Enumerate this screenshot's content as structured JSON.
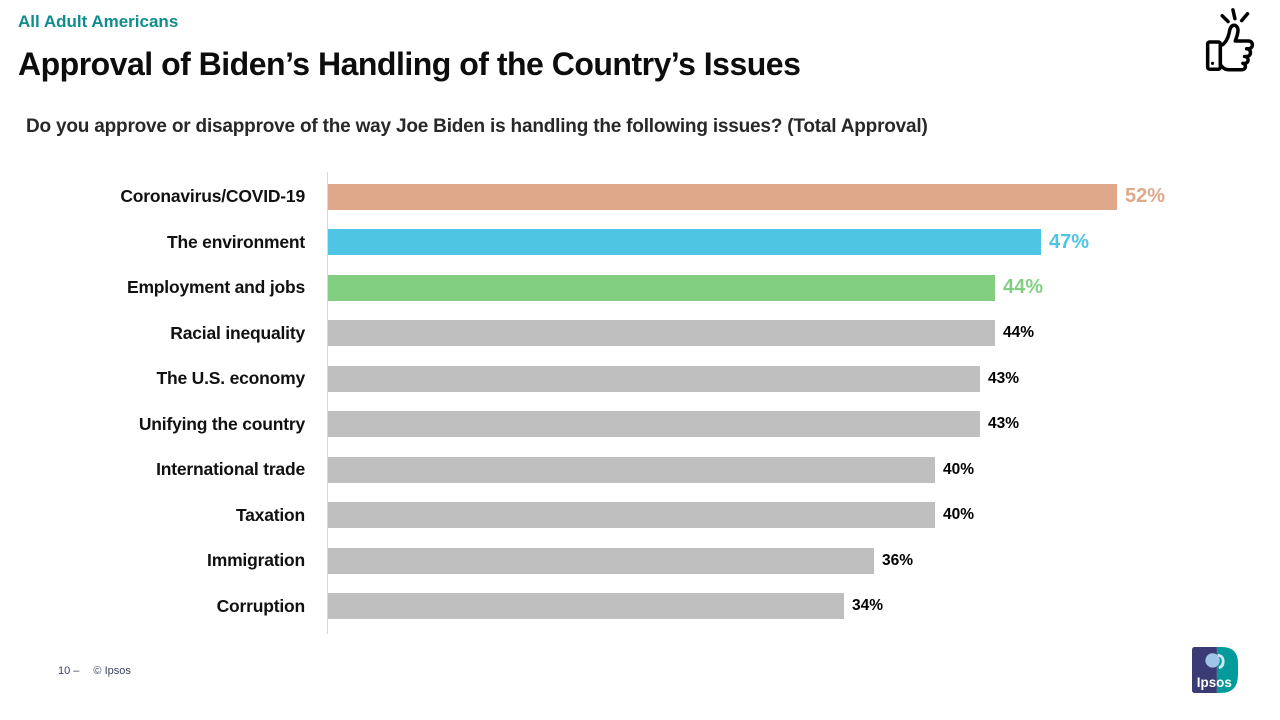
{
  "slide": {
    "eyebrow": "All Adult Americans",
    "title": "Approval of Biden’s Handling of the Country’s Issues",
    "subtitle": "Do you approve or disapprove of the way Joe Biden is handling the following issues? (Total Approval)",
    "footer": {
      "page_label": "10 –",
      "copyright": "© Ipsos"
    },
    "logo_text": "Ipsos",
    "icons": {
      "top_right": "thumbs-up-icon",
      "bottom_right": "ipsos-logo"
    }
  },
  "colors": {
    "eyebrow_teal": "#108C8C",
    "highlight_tan": "#DFA88A",
    "highlight_cyan": "#4EC5E2",
    "highlight_green": "#82CF82",
    "bar_gray": "#BFBFBF",
    "axis_line_gray": "#D9D9D9",
    "footer_navy": "#39415E",
    "logo_navy": "#3A3A74",
    "logo_teal": "#009B9A"
  },
  "chart_data": {
    "type": "bar",
    "orientation": "horizontal",
    "title": "Approval of Biden’s Handling of the Country’s Issues",
    "question": "Do you approve or disapprove of the way Joe Biden is handling the following issues? (Total Approval)",
    "population": "All Adult Americans",
    "value_suffix": "%",
    "xlim": [
      0,
      59
    ],
    "grid": false,
    "legend": false,
    "items": [
      {
        "label": "Coronavirus/COVID-19",
        "value": 52,
        "display": "52%",
        "color": "#DFA88A",
        "value_label_color": "#DFA88A",
        "highlighted": true
      },
      {
        "label": "The environment",
        "value": 47,
        "display": "47%",
        "color": "#4EC5E2",
        "value_label_color": "#4EC5E2",
        "highlighted": true
      },
      {
        "label": "Employment and jobs",
        "value": 44,
        "display": "44%",
        "color": "#82CF82",
        "value_label_color": "#82CF82",
        "highlighted": true
      },
      {
        "label": "Racial inequality",
        "value": 44,
        "display": "44%",
        "color": "#BFBFBF",
        "value_label_color": "#000000",
        "highlighted": false
      },
      {
        "label": "The U.S. economy",
        "value": 43,
        "display": "43%",
        "color": "#BFBFBF",
        "value_label_color": "#000000",
        "highlighted": false
      },
      {
        "label": "Unifying the country",
        "value": 43,
        "display": "43%",
        "color": "#BFBFBF",
        "value_label_color": "#000000",
        "highlighted": false
      },
      {
        "label": "International trade",
        "value": 40,
        "display": "40%",
        "color": "#BFBFBF",
        "value_label_color": "#000000",
        "highlighted": false
      },
      {
        "label": "Taxation",
        "value": 40,
        "display": "40%",
        "color": "#BFBFBF",
        "value_label_color": "#000000",
        "highlighted": false
      },
      {
        "label": "Immigration",
        "value": 36,
        "display": "36%",
        "color": "#BFBFBF",
        "value_label_color": "#000000",
        "highlighted": false
      },
      {
        "label": "Corruption",
        "value": 34,
        "display": "34%",
        "color": "#BFBFBF",
        "value_label_color": "#000000",
        "highlighted": false
      }
    ]
  }
}
